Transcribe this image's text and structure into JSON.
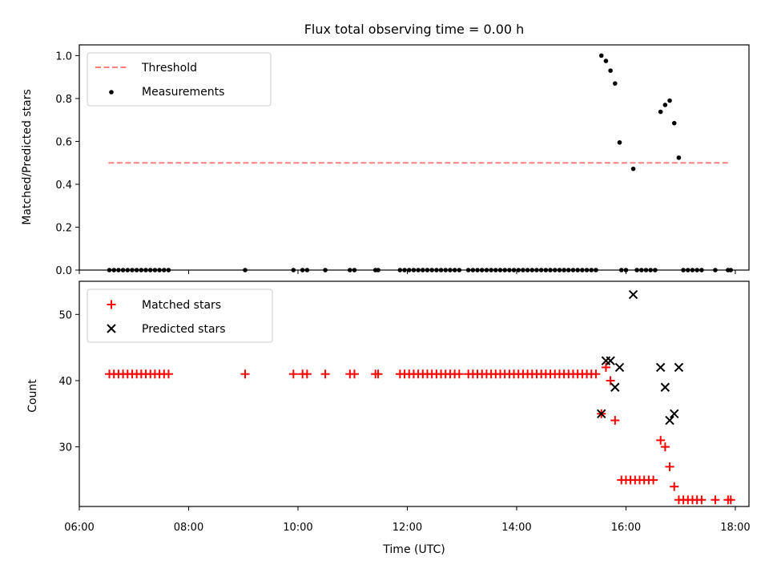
{
  "chart_data": [
    {
      "type": "scatter",
      "title": "Flux total observing time = 0.00 h",
      "xlabel": "",
      "ylabel": "Matched/Predicted stars",
      "xlim": [
        "06:00",
        "18:15"
      ],
      "ylim": [
        0.0,
        1.05
      ],
      "yticks": [
        "0.0",
        "0.2",
        "0.4",
        "0.6",
        "0.8",
        "1.0"
      ],
      "grid": false,
      "legend_position": "top-left",
      "legend": [
        "Threshold",
        "Measurements"
      ],
      "threshold": {
        "name": "Threshold",
        "y": 0.5,
        "x_start": "06:32",
        "x_end": "17:52",
        "color": "#ff7f7f",
        "style": "dashed"
      },
      "series": [
        {
          "name": "Measurements",
          "color": "#000000",
          "marker": "dot",
          "points": [
            [
              "06:33",
              0
            ],
            [
              "06:38",
              0
            ],
            [
              "06:43",
              0
            ],
            [
              "06:48",
              0
            ],
            [
              "06:53",
              0
            ],
            [
              "06:58",
              0
            ],
            [
              "07:03",
              0
            ],
            [
              "07:08",
              0
            ],
            [
              "07:13",
              0
            ],
            [
              "07:18",
              0
            ],
            [
              "07:23",
              0
            ],
            [
              "07:28",
              0
            ],
            [
              "07:33",
              0
            ],
            [
              "07:38",
              0
            ],
            [
              "09:02",
              0
            ],
            [
              "09:55",
              0
            ],
            [
              "10:05",
              0
            ],
            [
              "10:10",
              0
            ],
            [
              "10:30",
              0
            ],
            [
              "10:57",
              0
            ],
            [
              "11:02",
              0
            ],
            [
              "11:25",
              0
            ],
            [
              "11:28",
              0
            ],
            [
              "11:52",
              0
            ],
            [
              "11:57",
              0
            ],
            [
              "12:02",
              0
            ],
            [
              "12:07",
              0
            ],
            [
              "12:12",
              0
            ],
            [
              "12:17",
              0
            ],
            [
              "12:22",
              0
            ],
            [
              "12:27",
              0
            ],
            [
              "12:32",
              0
            ],
            [
              "12:37",
              0
            ],
            [
              "12:42",
              0
            ],
            [
              "12:47",
              0
            ],
            [
              "12:52",
              0
            ],
            [
              "12:57",
              0
            ],
            [
              "13:07",
              0
            ],
            [
              "13:12",
              0
            ],
            [
              "13:17",
              0
            ],
            [
              "13:22",
              0
            ],
            [
              "13:27",
              0
            ],
            [
              "13:32",
              0
            ],
            [
              "13:37",
              0
            ],
            [
              "13:42",
              0
            ],
            [
              "13:47",
              0
            ],
            [
              "13:52",
              0
            ],
            [
              "13:57",
              0
            ],
            [
              "14:02",
              0
            ],
            [
              "14:07",
              0
            ],
            [
              "14:12",
              0
            ],
            [
              "14:17",
              0
            ],
            [
              "14:22",
              0
            ],
            [
              "14:27",
              0
            ],
            [
              "14:32",
              0
            ],
            [
              "14:37",
              0
            ],
            [
              "14:42",
              0
            ],
            [
              "14:47",
              0
            ],
            [
              "14:52",
              0
            ],
            [
              "14:57",
              0
            ],
            [
              "15:02",
              0
            ],
            [
              "15:07",
              0
            ],
            [
              "15:12",
              0
            ],
            [
              "15:17",
              0
            ],
            [
              "15:22",
              0
            ],
            [
              "15:27",
              0
            ],
            [
              "15:33",
              1.0
            ],
            [
              "15:38",
              0.975
            ],
            [
              "15:43",
              0.93
            ],
            [
              "15:48",
              0.87
            ],
            [
              "15:53",
              0.595
            ],
            [
              "15:55",
              0
            ],
            [
              "16:00",
              0
            ],
            [
              "16:08",
              0.472
            ],
            [
              "16:12",
              0
            ],
            [
              "16:17",
              0
            ],
            [
              "16:22",
              0
            ],
            [
              "16:27",
              0
            ],
            [
              "16:32",
              0
            ],
            [
              "16:38",
              0.738
            ],
            [
              "16:43",
              0.77
            ],
            [
              "16:48",
              0.79
            ],
            [
              "16:53",
              0.685
            ],
            [
              "16:58",
              0.524
            ],
            [
              "17:03",
              0
            ],
            [
              "17:08",
              0
            ],
            [
              "17:13",
              0
            ],
            [
              "17:18",
              0
            ],
            [
              "17:23",
              0
            ],
            [
              "17:38",
              0
            ],
            [
              "17:52",
              0
            ],
            [
              "17:55",
              0
            ]
          ]
        }
      ]
    },
    {
      "type": "scatter",
      "title": "",
      "xlabel": "Time (UTC)",
      "ylabel": "Count",
      "xlim": [
        "06:00",
        "18:15"
      ],
      "ylim": [
        21,
        55
      ],
      "yticks": [
        "30",
        "40",
        "50"
      ],
      "xticks": [
        "06:00",
        "08:00",
        "10:00",
        "12:00",
        "14:00",
        "16:00",
        "18:00"
      ],
      "grid": false,
      "legend_position": "top-left",
      "legend": [
        "Matched stars",
        "Predicted stars"
      ],
      "series": [
        {
          "name": "Matched stars",
          "color": "#ff0000",
          "marker": "plus",
          "points": [
            [
              "06:33",
              41
            ],
            [
              "06:38",
              41
            ],
            [
              "06:43",
              41
            ],
            [
              "06:48",
              41
            ],
            [
              "06:53",
              41
            ],
            [
              "06:58",
              41
            ],
            [
              "07:03",
              41
            ],
            [
              "07:08",
              41
            ],
            [
              "07:13",
              41
            ],
            [
              "07:18",
              41
            ],
            [
              "07:23",
              41
            ],
            [
              "07:28",
              41
            ],
            [
              "07:33",
              41
            ],
            [
              "07:38",
              41
            ],
            [
              "09:02",
              41
            ],
            [
              "09:55",
              41
            ],
            [
              "10:05",
              41
            ],
            [
              "10:10",
              41
            ],
            [
              "10:30",
              41
            ],
            [
              "10:57",
              41
            ],
            [
              "11:02",
              41
            ],
            [
              "11:25",
              41
            ],
            [
              "11:28",
              41
            ],
            [
              "11:52",
              41
            ],
            [
              "11:57",
              41
            ],
            [
              "12:02",
              41
            ],
            [
              "12:07",
              41
            ],
            [
              "12:12",
              41
            ],
            [
              "12:17",
              41
            ],
            [
              "12:22",
              41
            ],
            [
              "12:27",
              41
            ],
            [
              "12:32",
              41
            ],
            [
              "12:37",
              41
            ],
            [
              "12:42",
              41
            ],
            [
              "12:47",
              41
            ],
            [
              "12:52",
              41
            ],
            [
              "12:57",
              41
            ],
            [
              "13:07",
              41
            ],
            [
              "13:12",
              41
            ],
            [
              "13:17",
              41
            ],
            [
              "13:22",
              41
            ],
            [
              "13:27",
              41
            ],
            [
              "13:32",
              41
            ],
            [
              "13:37",
              41
            ],
            [
              "13:42",
              41
            ],
            [
              "13:47",
              41
            ],
            [
              "13:52",
              41
            ],
            [
              "13:57",
              41
            ],
            [
              "14:02",
              41
            ],
            [
              "14:07",
              41
            ],
            [
              "14:12",
              41
            ],
            [
              "14:17",
              41
            ],
            [
              "14:22",
              41
            ],
            [
              "14:27",
              41
            ],
            [
              "14:32",
              41
            ],
            [
              "14:37",
              41
            ],
            [
              "14:42",
              41
            ],
            [
              "14:47",
              41
            ],
            [
              "14:52",
              41
            ],
            [
              "14:57",
              41
            ],
            [
              "15:02",
              41
            ],
            [
              "15:07",
              41
            ],
            [
              "15:12",
              41
            ],
            [
              "15:17",
              41
            ],
            [
              "15:22",
              41
            ],
            [
              "15:27",
              41
            ],
            [
              "15:33",
              35
            ],
            [
              "15:38",
              42
            ],
            [
              "15:43",
              40
            ],
            [
              "15:48",
              34
            ],
            [
              "15:55",
              25
            ],
            [
              "16:00",
              25
            ],
            [
              "16:05",
              25
            ],
            [
              "16:10",
              25
            ],
            [
              "16:15",
              25
            ],
            [
              "16:20",
              25
            ],
            [
              "16:25",
              25
            ],
            [
              "16:30",
              25
            ],
            [
              "16:38",
              31
            ],
            [
              "16:43",
              30
            ],
            [
              "16:48",
              27
            ],
            [
              "16:53",
              24
            ],
            [
              "16:58",
              22
            ],
            [
              "17:03",
              22
            ],
            [
              "17:08",
              22
            ],
            [
              "17:13",
              22
            ],
            [
              "17:18",
              22
            ],
            [
              "17:23",
              22
            ],
            [
              "17:38",
              22
            ],
            [
              "17:52",
              22
            ],
            [
              "17:55",
              22
            ]
          ]
        },
        {
          "name": "Predicted stars",
          "color": "#000000",
          "marker": "x",
          "points": [
            [
              "15:33",
              35
            ],
            [
              "15:38",
              43
            ],
            [
              "15:43",
              43
            ],
            [
              "15:48",
              39
            ],
            [
              "15:53",
              42
            ],
            [
              "16:08",
              53
            ],
            [
              "16:38",
              42
            ],
            [
              "16:43",
              39
            ],
            [
              "16:48",
              34
            ],
            [
              "16:53",
              35
            ],
            [
              "16:58",
              42
            ]
          ]
        }
      ]
    }
  ]
}
